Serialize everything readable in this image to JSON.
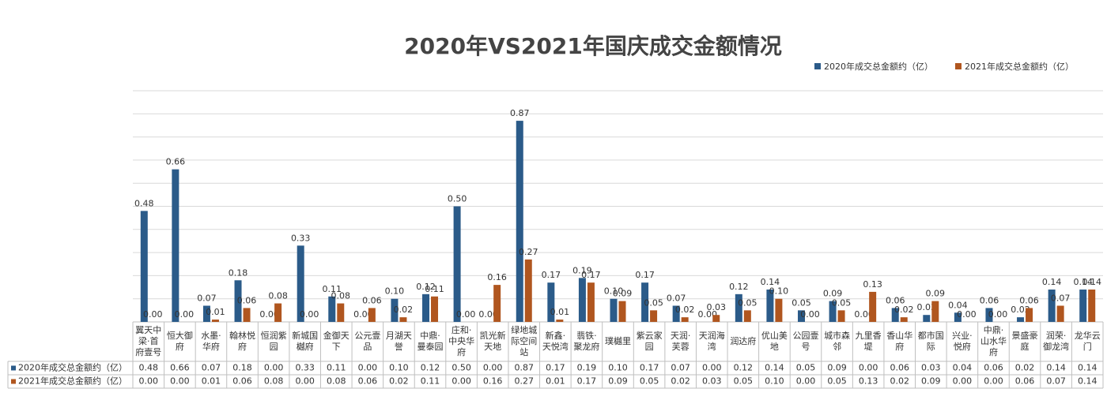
{
  "chart_data": {
    "type": "bar",
    "title": "2020年VS2021年国庆成交金额情况",
    "categories": [
      "翼天中梁·首府壹号",
      "恒大御府",
      "水墨·华府",
      "翰林悦府",
      "恒润紫园",
      "新城国樾府",
      "金御天下",
      "公元壹品",
      "月湖天誉",
      "中鼎·曼泰园",
      "庄和·中央华府",
      "凯光新天地",
      "绿地城际空间站",
      "新鑫·天悦湾",
      "翡铁·聚龙府",
      "璞樾里",
      "紫云家园",
      "天润·芙蓉",
      "天润海湾",
      "润达府",
      "优山美地",
      "公园壹号",
      "城市森邻",
      "九里香堤",
      "香山华府",
      "都市国际",
      "兴业·悦府",
      "中鼎·山水华府",
      "景盛豪庭",
      "润荣·御龙湾",
      "龙华云门"
    ],
    "series": [
      {
        "name": "2020年成交总金额约（亿）",
        "color": "#2b5b89",
        "values": [
          0.48,
          0.66,
          0.07,
          0.18,
          0,
          0.33,
          0.11,
          0,
          0.1,
          0.12,
          0.5,
          0,
          0.87,
          0.17,
          0.19,
          0.1,
          0.17,
          0.07,
          0,
          0.12,
          0.14,
          0.05,
          0.09,
          0,
          0.06,
          0.03,
          0.04,
          0.06,
          0.02,
          0.14,
          0.14
        ],
        "value_labels": [
          "0.48",
          "0.66",
          "0.07",
          "0.18",
          "0.00",
          "0.33",
          "0.11",
          "0.00",
          "0.10",
          "0.12",
          "0.50",
          "0.00",
          "0.87",
          "0.17",
          "0.19",
          "0.10",
          "0.17",
          "0.07",
          "0.00",
          "0.12",
          "0.14",
          "0.05",
          "0.09",
          "0.00",
          "0.06",
          "0.03",
          "0.04",
          "0.06",
          "0.02",
          "0.14",
          "0.14"
        ]
      },
      {
        "name": "2021年成交总金额约（亿）",
        "color": "#b0561f",
        "values": [
          0,
          0,
          0.01,
          0.06,
          0.08,
          0,
          0.08,
          0.06,
          0.02,
          0.11,
          0,
          0.16,
          0.27,
          0.01,
          0.17,
          0.09,
          0.05,
          0.02,
          0.03,
          0.05,
          0.1,
          0,
          0.05,
          0.13,
          0.02,
          0.09,
          0,
          0,
          0.06,
          0.07,
          0.14
        ],
        "value_labels": [
          "0.00",
          "0.00",
          "0.01",
          "0.06",
          "0.08",
          "0.00",
          "0.08",
          "0.06",
          "0.02",
          "0.11",
          "0.00",
          "0.16",
          "0.27",
          "0.01",
          "0.17",
          "0.09",
          "0.05",
          "0.02",
          "0.03",
          "0.05",
          "0.10",
          "0.00",
          "0.05",
          "0.13",
          "0.02",
          "0.09",
          "0.00",
          "0.00",
          "0.06",
          "0.07",
          "0.14"
        ]
      }
    ],
    "ylim": [
      0,
      1
    ],
    "yticks": [
      0,
      0.1,
      0.2,
      0.3,
      0.4,
      0.5,
      0.6,
      0.7,
      0.8,
      0.9,
      1
    ],
    "grid": true,
    "legend": "top-right"
  }
}
